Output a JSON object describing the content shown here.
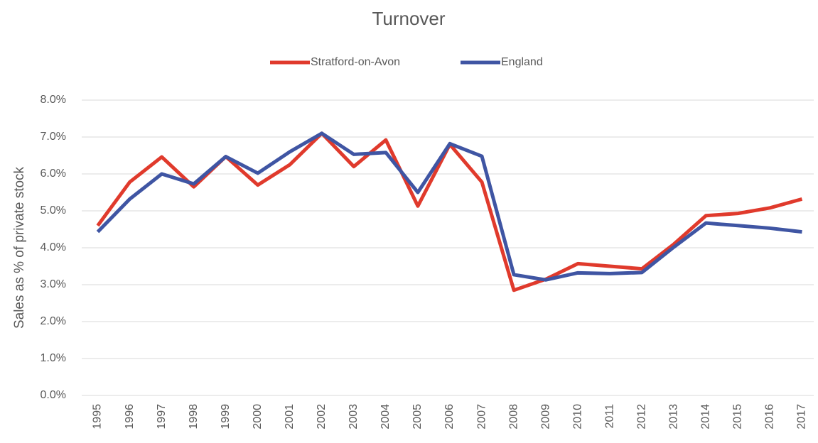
{
  "chart_data": {
    "type": "line",
    "title": "Turnover",
    "y_label": "Sales as % of private stock",
    "categories": [
      "1995",
      "1996",
      "1997",
      "1998",
      "1999",
      "2000",
      "2001",
      "2002",
      "2003",
      "2004",
      "2005",
      "2006",
      "2007",
      "2008",
      "2009",
      "2010",
      "2011",
      "2012",
      "2013",
      "2014",
      "2015",
      "2016",
      "2017"
    ],
    "series": [
      {
        "name": "Stratford-on-Avon",
        "color": "#e03a2c",
        "values": [
          4.6,
          5.78,
          6.46,
          5.65,
          6.47,
          5.7,
          6.25,
          7.1,
          6.2,
          6.92,
          5.13,
          6.8,
          5.78,
          2.85,
          3.15,
          3.57,
          3.5,
          3.43,
          4.1,
          4.87,
          4.93,
          5.08,
          5.32
        ]
      },
      {
        "name": "England",
        "color": "#3f55a3",
        "values": [
          4.43,
          5.32,
          6.0,
          5.73,
          6.47,
          6.02,
          6.6,
          7.1,
          6.53,
          6.58,
          5.5,
          6.82,
          6.48,
          3.27,
          3.13,
          3.32,
          3.3,
          3.33,
          4.02,
          4.67,
          4.6,
          4.53,
          4.43
        ]
      }
    ],
    "ylim": [
      0,
      8
    ],
    "yticks": [
      {
        "value": 0,
        "label": "0.0%"
      },
      {
        "value": 1,
        "label": "1.0%"
      },
      {
        "value": 2,
        "label": "2.0%"
      },
      {
        "value": 3,
        "label": "3.0%"
      },
      {
        "value": 4,
        "label": "4.0%"
      },
      {
        "value": 5,
        "label": "5.0%"
      },
      {
        "value": 6,
        "label": "6.0%"
      },
      {
        "value": 7,
        "label": "7.0%"
      },
      {
        "value": 8,
        "label": "8.0%"
      }
    ],
    "grid": true,
    "legend": "top"
  }
}
